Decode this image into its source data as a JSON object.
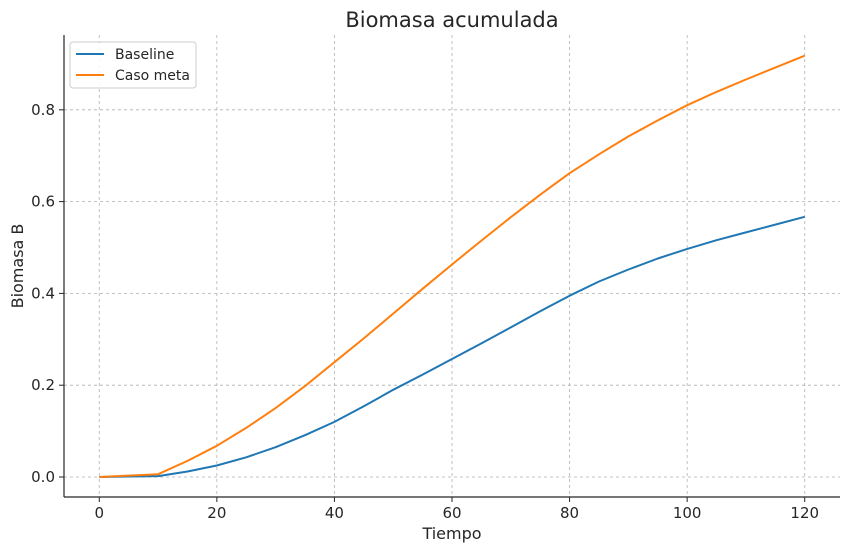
{
  "chart_data": {
    "type": "line",
    "title": "Biomasa acumulada",
    "xlabel": "Tiempo",
    "ylabel": "Biomasa B",
    "xlim": [
      -6,
      126
    ],
    "ylim": [
      -0.0436,
      0.963
    ],
    "xticks": [
      0,
      20,
      40,
      60,
      80,
      100,
      120
    ],
    "xtick_labels": [
      "0",
      "20",
      "40",
      "60",
      "80",
      "100",
      "120"
    ],
    "yticks": [
      0.0,
      0.2,
      0.4,
      0.6,
      0.8
    ],
    "ytick_labels": [
      "0.0",
      "0.2",
      "0.4",
      "0.6",
      "0.8"
    ],
    "grid": true,
    "legend_position": "top-left",
    "x": [
      0,
      5,
      10,
      15,
      20,
      25,
      30,
      35,
      40,
      45,
      50,
      55,
      60,
      65,
      70,
      75,
      80,
      85,
      90,
      95,
      100,
      105,
      110,
      115,
      120
    ],
    "series": [
      {
        "name": "Baseline",
        "color": "#1f77b4",
        "values": [
          0,
          0.001,
          0.002,
          0.012,
          0.025,
          0.043,
          0.065,
          0.091,
          0.12,
          0.154,
          0.19,
          0.223,
          0.257,
          0.291,
          0.326,
          0.361,
          0.395,
          0.426,
          0.452,
          0.476,
          0.497,
          0.516,
          0.533,
          0.55,
          0.567
        ]
      },
      {
        "name": "Caso meta",
        "color": "#ff7f0e",
        "values": [
          0,
          0.003,
          0.006,
          0.035,
          0.068,
          0.107,
          0.15,
          0.198,
          0.25,
          0.302,
          0.356,
          0.41,
          0.463,
          0.515,
          0.566,
          0.615,
          0.662,
          0.703,
          0.742,
          0.777,
          0.81,
          0.839,
          0.866,
          0.892,
          0.918
        ]
      }
    ]
  }
}
